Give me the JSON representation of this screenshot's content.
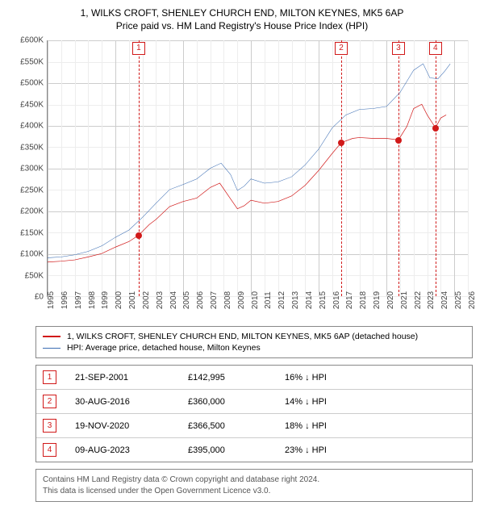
{
  "title": {
    "line1": "1, WILKS CROFT, SHENLEY CHURCH END, MILTON KEYNES, MK5 6AP",
    "line2": "Price paid vs. HM Land Registry's House Price Index (HPI)",
    "fontsize": 12
  },
  "chart": {
    "type": "line",
    "background_color": "#ffffff",
    "grid_color_major": "#cccccc",
    "grid_color_minor": "#ededed",
    "axis_color": "#888888",
    "x": {
      "min": 1995,
      "max": 2026,
      "ticks": [
        1995,
        1996,
        1997,
        1998,
        1999,
        2000,
        2001,
        2002,
        2003,
        2004,
        2005,
        2006,
        2007,
        2008,
        2009,
        2010,
        2011,
        2012,
        2013,
        2014,
        2015,
        2016,
        2017,
        2018,
        2019,
        2020,
        2021,
        2022,
        2023,
        2024,
        2025,
        2026
      ],
      "label_fontsize": 10
    },
    "y": {
      "min": 0,
      "max": 600000,
      "ticks": [
        0,
        50000,
        100000,
        150000,
        200000,
        250000,
        300000,
        350000,
        400000,
        450000,
        500000,
        550000,
        600000
      ],
      "tick_labels": [
        "£0",
        "£50K",
        "£100K",
        "£150K",
        "£200K",
        "£250K",
        "£300K",
        "£350K",
        "£400K",
        "£450K",
        "£500K",
        "£550K",
        "£600K"
      ],
      "label_fontsize": 10
    },
    "series": [
      {
        "id": "property",
        "label": "1, WILKS CROFT, SHENLEY CHURCH END, MILTON KEYNES, MK5 6AP (detached house)",
        "color": "#d11919",
        "line_width": 2,
        "points": [
          [
            1995.0,
            80000
          ],
          [
            1996.0,
            82000
          ],
          [
            1997.0,
            85000
          ],
          [
            1998.0,
            92000
          ],
          [
            1999.0,
            100000
          ],
          [
            2000.0,
            115000
          ],
          [
            2001.0,
            128000
          ],
          [
            2001.72,
            142995
          ],
          [
            2002.5,
            168000
          ],
          [
            2003.0,
            180000
          ],
          [
            2004.0,
            210000
          ],
          [
            2005.0,
            222000
          ],
          [
            2006.0,
            230000
          ],
          [
            2007.0,
            255000
          ],
          [
            2007.7,
            265000
          ],
          [
            2008.5,
            228000
          ],
          [
            2009.0,
            205000
          ],
          [
            2009.5,
            212000
          ],
          [
            2010.0,
            225000
          ],
          [
            2011.0,
            218000
          ],
          [
            2012.0,
            222000
          ],
          [
            2013.0,
            235000
          ],
          [
            2014.0,
            260000
          ],
          [
            2015.0,
            295000
          ],
          [
            2016.0,
            335000
          ],
          [
            2016.66,
            360000
          ],
          [
            2017.5,
            370000
          ],
          [
            2018.0,
            372000
          ],
          [
            2019.0,
            370000
          ],
          [
            2020.0,
            370000
          ],
          [
            2020.88,
            366500
          ],
          [
            2021.5,
            398000
          ],
          [
            2022.0,
            440000
          ],
          [
            2022.6,
            450000
          ],
          [
            2023.0,
            425000
          ],
          [
            2023.61,
            395000
          ],
          [
            2024.0,
            418000
          ],
          [
            2024.4,
            425000
          ]
        ]
      },
      {
        "id": "hpi",
        "label": "HPI: Average price, detached house, Milton Keynes",
        "color": "#3b6db3",
        "line_width": 1.5,
        "points": [
          [
            1995.0,
            90000
          ],
          [
            1996.0,
            92000
          ],
          [
            1997.0,
            97000
          ],
          [
            1998.0,
            105000
          ],
          [
            1999.0,
            118000
          ],
          [
            2000.0,
            138000
          ],
          [
            2001.0,
            155000
          ],
          [
            2002.0,
            185000
          ],
          [
            2003.0,
            218000
          ],
          [
            2004.0,
            250000
          ],
          [
            2005.0,
            262000
          ],
          [
            2006.0,
            275000
          ],
          [
            2007.0,
            300000
          ],
          [
            2007.8,
            312000
          ],
          [
            2008.5,
            285000
          ],
          [
            2009.0,
            248000
          ],
          [
            2009.5,
            258000
          ],
          [
            2010.0,
            275000
          ],
          [
            2011.0,
            265000
          ],
          [
            2012.0,
            268000
          ],
          [
            2013.0,
            280000
          ],
          [
            2014.0,
            308000
          ],
          [
            2015.0,
            345000
          ],
          [
            2016.0,
            395000
          ],
          [
            2017.0,
            425000
          ],
          [
            2018.0,
            438000
          ],
          [
            2019.0,
            440000
          ],
          [
            2020.0,
            445000
          ],
          [
            2021.0,
            478000
          ],
          [
            2022.0,
            530000
          ],
          [
            2022.7,
            545000
          ],
          [
            2023.2,
            512000
          ],
          [
            2023.8,
            510000
          ],
          [
            2024.3,
            528000
          ],
          [
            2024.7,
            545000
          ]
        ]
      }
    ],
    "sale_markers": [
      {
        "n": "1",
        "x": 2001.72,
        "y": 142995,
        "color": "#d11919"
      },
      {
        "n": "2",
        "x": 2016.66,
        "y": 360000,
        "color": "#d11919"
      },
      {
        "n": "3",
        "x": 2020.88,
        "y": 366500,
        "color": "#d11919"
      },
      {
        "n": "4",
        "x": 2023.61,
        "y": 395000,
        "color": "#d11919"
      }
    ],
    "marker_box_border": "#d11919",
    "marker_vline_color": "#d11919"
  },
  "legend": {
    "border_color": "#888888",
    "fontsize": 10.5
  },
  "sales_table": {
    "border_color": "#888888",
    "badge_border": "#d11919",
    "arrow": "↓",
    "rows": [
      {
        "n": "1",
        "date": "21-SEP-2001",
        "price": "£142,995",
        "delta": "16% ↓ HPI"
      },
      {
        "n": "2",
        "date": "30-AUG-2016",
        "price": "£360,000",
        "delta": "14% ↓ HPI"
      },
      {
        "n": "3",
        "date": "19-NOV-2020",
        "price": "£366,500",
        "delta": "18% ↓ HPI"
      },
      {
        "n": "4",
        "date": "09-AUG-2023",
        "price": "£395,000",
        "delta": "23% ↓ HPI"
      }
    ]
  },
  "attribution": {
    "line1": "Contains HM Land Registry data © Crown copyright and database right 2024.",
    "line2": "This data is licensed under the Open Government Licence v3.0."
  }
}
